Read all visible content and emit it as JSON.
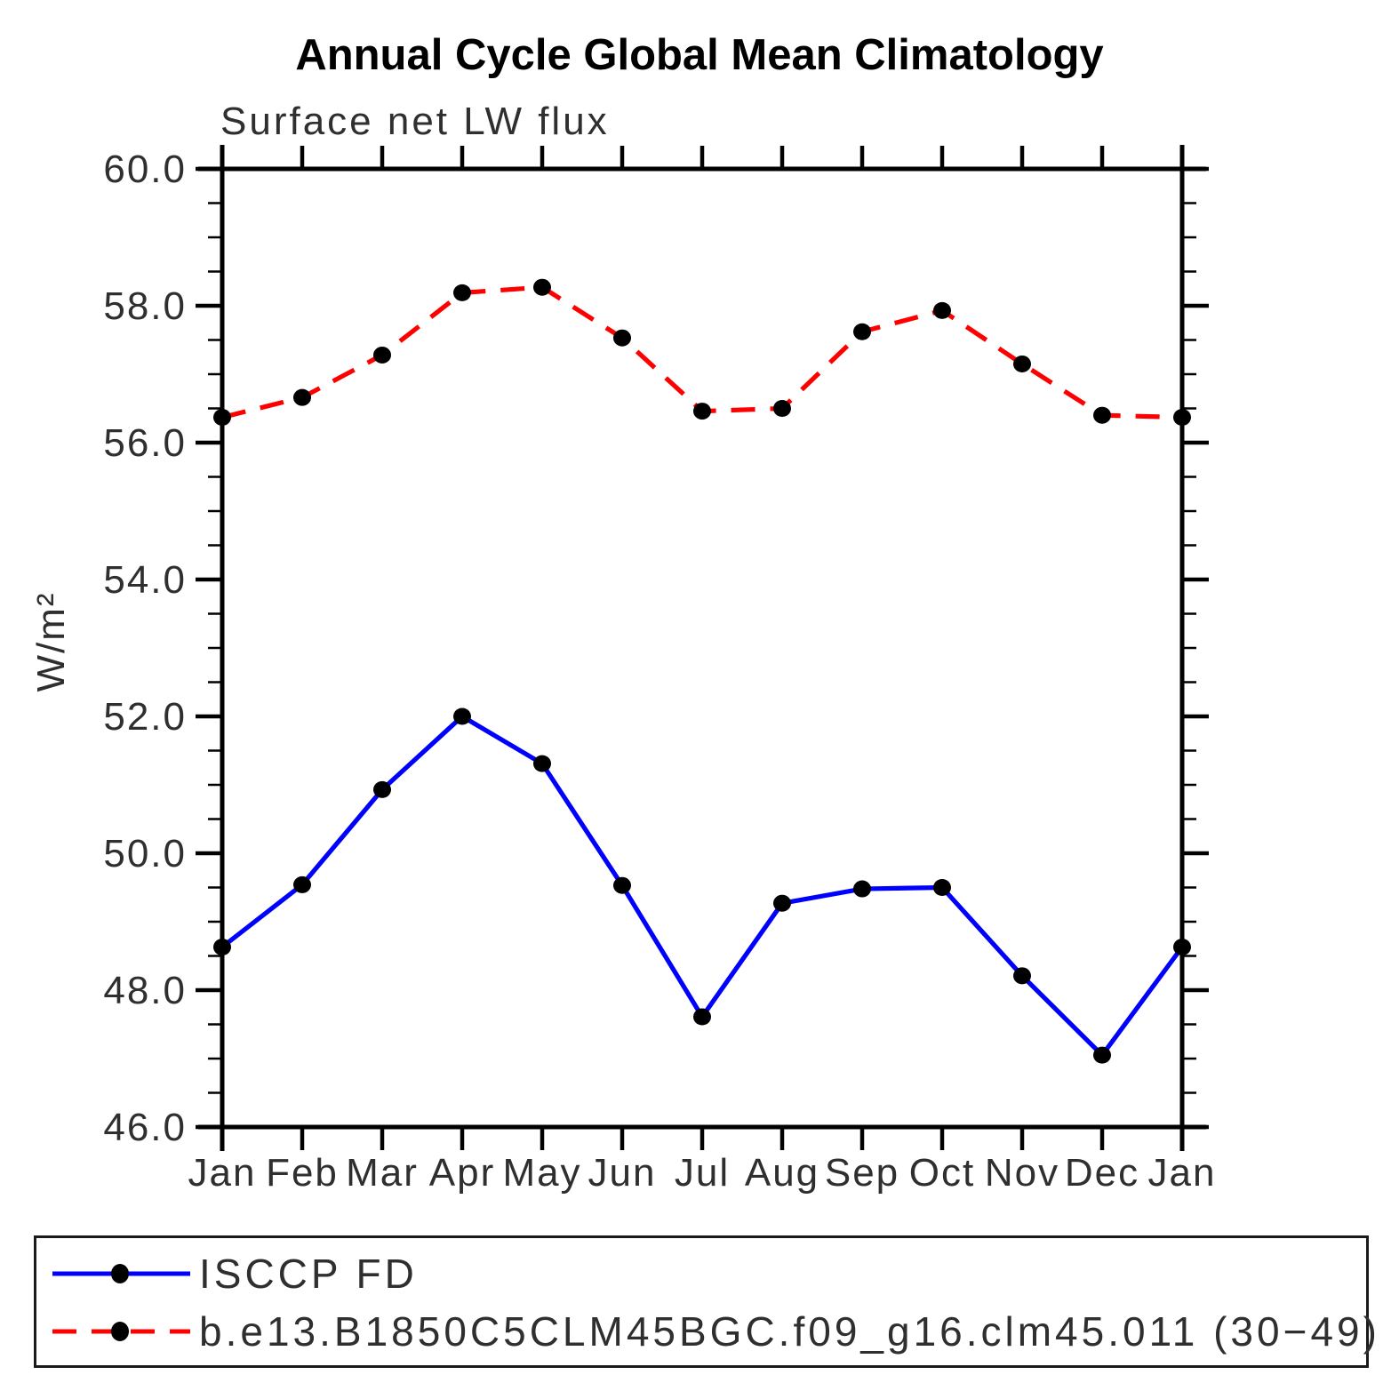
{
  "title": "Annual Cycle Global Mean Climatology",
  "subtitle": "Surface net LW flux",
  "chart_data": {
    "type": "line",
    "title": "Annual Cycle Global Mean Climatology",
    "subtitle": "Surface net LW flux",
    "xlabel": "",
    "ylabel": "W/m²",
    "ylim": [
      46.0,
      60.0
    ],
    "ytick_major_step": 2.0,
    "ytick_minor_step": 0.5,
    "ytick_labels": [
      "46.0",
      "48.0",
      "50.0",
      "52.0",
      "54.0",
      "56.0",
      "58.0",
      "60.0"
    ],
    "categories": [
      "Jan",
      "Feb",
      "Mar",
      "Apr",
      "May",
      "Jun",
      "Jul",
      "Aug",
      "Sep",
      "Oct",
      "Nov",
      "Dec",
      "Jan"
    ],
    "grid": false,
    "legend_position": "bottom",
    "series": [
      {
        "name": "ISCCP FD",
        "color": "#0000ff",
        "line_style": "solid",
        "marker": "filled-circle",
        "marker_color": "#000000",
        "values": [
          48.63,
          49.54,
          50.93,
          52.0,
          51.31,
          49.53,
          47.61,
          49.27,
          49.48,
          49.5,
          48.21,
          47.05,
          48.63
        ]
      },
      {
        "name": "b.e13.B1850C5CLM45BGC.f09_g16.clm45.011 (30−49)",
        "color": "#ff0000",
        "line_style": "dashed",
        "marker": "filled-circle",
        "marker_color": "#000000",
        "values": [
          56.37,
          56.66,
          57.28,
          58.19,
          58.27,
          57.53,
          56.46,
          56.5,
          57.62,
          57.93,
          57.15,
          56.4,
          56.37
        ]
      }
    ]
  }
}
